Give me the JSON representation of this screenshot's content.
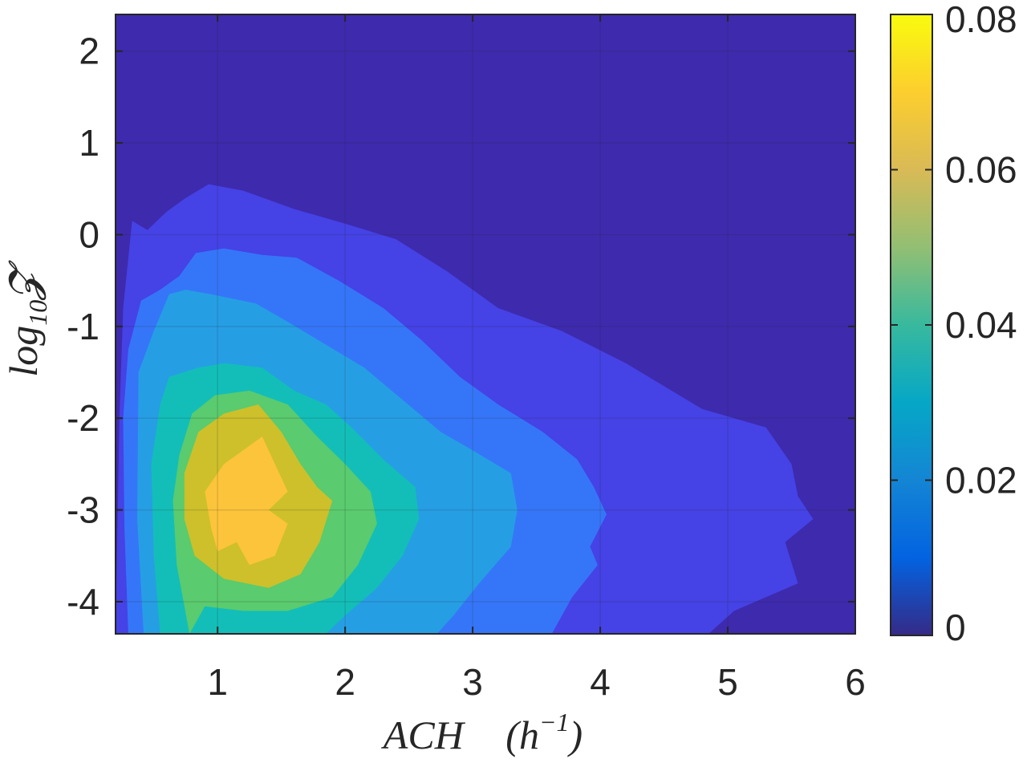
{
  "chart_data": {
    "type": "contourf",
    "xlabel": "ACH",
    "xlabel_unit": "(h",
    "xlabel_unit_exp": "−1",
    "xlabel_unit_close": ")",
    "ylabel": "log",
    "ylabel_sub": "10",
    "ylabel_var": "𝓩",
    "xlim": [
      0.2,
      6
    ],
    "ylim": [
      -4.35,
      2.4
    ],
    "xticks": [
      1,
      2,
      3,
      4,
      5,
      6
    ],
    "xtick_labels": [
      "1",
      "2",
      "3",
      "4",
      "5",
      "6"
    ],
    "yticks": [
      2,
      1,
      0,
      -1,
      -2,
      -3,
      -4
    ],
    "ytick_labels": [
      "2",
      "1",
      "0",
      "-1",
      "-2",
      "-3",
      "-4"
    ],
    "colorbar": {
      "range": [
        0,
        0.08
      ],
      "ticks": [
        0,
        0.02,
        0.04,
        0.06,
        0.08
      ],
      "tick_labels": [
        "0",
        "0.02",
        "0.04",
        "0.06",
        "0.08"
      ],
      "colormap": "parula"
    },
    "grid": true,
    "levels": [
      {
        "level": 0.005,
        "color": "#4542e6"
      },
      {
        "level": 0.012,
        "color": "#3576f8"
      },
      {
        "level": 0.02,
        "color": "#269ee4"
      },
      {
        "level": 0.03,
        "color": "#13beb8"
      },
      {
        "level": 0.04,
        "color": "#5acb6e"
      },
      {
        "level": 0.052,
        "color": "#cdc02b"
      },
      {
        "level": 0.065,
        "color": "#fcc43a"
      }
    ],
    "background_color": "#3e2aad",
    "contours": [
      [
        [
          0.2,
          -4.35
        ],
        [
          0.23,
          -2.0
        ],
        [
          0.26,
          -0.8
        ],
        [
          0.33,
          0.15
        ],
        [
          0.45,
          0.05
        ],
        [
          0.6,
          0.25
        ],
        [
          0.75,
          0.4
        ],
        [
          0.93,
          0.55
        ],
        [
          1.2,
          0.48
        ],
        [
          1.6,
          0.28
        ],
        [
          2.0,
          0.12
        ],
        [
          2.4,
          -0.05
        ],
        [
          2.8,
          -0.4
        ],
        [
          3.2,
          -0.8
        ],
        [
          3.7,
          -1.05
        ],
        [
          4.2,
          -1.4
        ],
        [
          4.5,
          -1.65
        ],
        [
          4.8,
          -1.9
        ],
        [
          5.3,
          -2.1
        ],
        [
          5.5,
          -2.5
        ],
        [
          5.55,
          -2.85
        ],
        [
          5.67,
          -3.1
        ],
        [
          5.45,
          -3.35
        ],
        [
          5.55,
          -3.8
        ],
        [
          5.05,
          -4.1
        ],
        [
          4.85,
          -4.35
        ]
      ],
      [
        [
          0.3,
          -4.35
        ],
        [
          0.27,
          -3.2
        ],
        [
          0.26,
          -2.0
        ],
        [
          0.3,
          -1.25
        ],
        [
          0.4,
          -0.72
        ],
        [
          0.55,
          -0.6
        ],
        [
          0.7,
          -0.45
        ],
        [
          0.83,
          -0.2
        ],
        [
          1.05,
          -0.15
        ],
        [
          1.35,
          -0.22
        ],
        [
          1.62,
          -0.25
        ],
        [
          1.95,
          -0.5
        ],
        [
          2.3,
          -0.8
        ],
        [
          2.6,
          -1.15
        ],
        [
          2.9,
          -1.55
        ],
        [
          3.2,
          -1.85
        ],
        [
          3.55,
          -2.15
        ],
        [
          3.82,
          -2.45
        ],
        [
          3.95,
          -2.75
        ],
        [
          4.05,
          -3.05
        ],
        [
          3.92,
          -3.4
        ],
        [
          3.98,
          -3.6
        ],
        [
          3.78,
          -3.95
        ],
        [
          3.62,
          -4.35
        ]
      ],
      [
        [
          0.42,
          -4.35
        ],
        [
          0.37,
          -3.1
        ],
        [
          0.38,
          -1.5
        ],
        [
          0.5,
          -1.05
        ],
        [
          0.62,
          -0.65
        ],
        [
          0.75,
          -0.6
        ],
        [
          0.95,
          -0.65
        ],
        [
          1.3,
          -0.75
        ],
        [
          1.55,
          -0.95
        ],
        [
          1.85,
          -1.2
        ],
        [
          2.15,
          -1.45
        ],
        [
          2.45,
          -1.8
        ],
        [
          2.75,
          -2.15
        ],
        [
          3.0,
          -2.35
        ],
        [
          3.3,
          -2.6
        ],
        [
          3.35,
          -3.0
        ],
        [
          3.3,
          -3.4
        ],
        [
          3.05,
          -3.8
        ],
        [
          2.85,
          -4.15
        ],
        [
          2.72,
          -4.35
        ]
      ],
      [
        [
          0.55,
          -4.35
        ],
        [
          0.5,
          -3.5
        ],
        [
          0.48,
          -2.5
        ],
        [
          0.55,
          -1.85
        ],
        [
          0.62,
          -1.55
        ],
        [
          0.85,
          -1.45
        ],
        [
          1.05,
          -1.4
        ],
        [
          1.35,
          -1.45
        ],
        [
          1.6,
          -1.7
        ],
        [
          1.85,
          -1.85
        ],
        [
          2.05,
          -2.1
        ],
        [
          2.3,
          -2.45
        ],
        [
          2.55,
          -2.75
        ],
        [
          2.58,
          -3.1
        ],
        [
          2.45,
          -3.5
        ],
        [
          2.25,
          -3.85
        ],
        [
          2.0,
          -4.15
        ],
        [
          1.85,
          -4.35
        ]
      ],
      [
        [
          0.78,
          -4.35
        ],
        [
          0.68,
          -3.6
        ],
        [
          0.65,
          -2.9
        ],
        [
          0.7,
          -2.4
        ],
        [
          0.8,
          -1.95
        ],
        [
          0.98,
          -1.75
        ],
        [
          1.25,
          -1.7
        ],
        [
          1.55,
          -1.85
        ],
        [
          1.78,
          -2.2
        ],
        [
          2.0,
          -2.5
        ],
        [
          2.2,
          -2.8
        ],
        [
          2.25,
          -3.15
        ],
        [
          2.1,
          -3.6
        ],
        [
          1.9,
          -3.95
        ],
        [
          1.55,
          -4.1
        ],
        [
          1.2,
          -4.1
        ],
        [
          0.9,
          -4.05
        ]
      ],
      [
        [
          0.82,
          -3.5
        ],
        [
          0.74,
          -3.1
        ],
        [
          0.74,
          -2.6
        ],
        [
          0.85,
          -2.15
        ],
        [
          1.05,
          -1.95
        ],
        [
          1.32,
          -1.85
        ],
        [
          1.5,
          -2.15
        ],
        [
          1.65,
          -2.5
        ],
        [
          1.78,
          -2.75
        ],
        [
          1.9,
          -2.9
        ],
        [
          1.8,
          -3.35
        ],
        [
          1.65,
          -3.7
        ],
        [
          1.4,
          -3.85
        ],
        [
          1.05,
          -3.75
        ]
      ],
      [
        [
          0.95,
          -3.2
        ],
        [
          0.9,
          -2.8
        ],
        [
          1.05,
          -2.5
        ],
        [
          1.2,
          -2.35
        ],
        [
          1.35,
          -2.2
        ],
        [
          1.45,
          -2.5
        ],
        [
          1.55,
          -2.8
        ],
        [
          1.4,
          -3.0
        ],
        [
          1.55,
          -3.15
        ],
        [
          1.45,
          -3.5
        ],
        [
          1.25,
          -3.6
        ],
        [
          1.15,
          -3.35
        ],
        [
          1.0,
          -3.45
        ]
      ]
    ]
  }
}
